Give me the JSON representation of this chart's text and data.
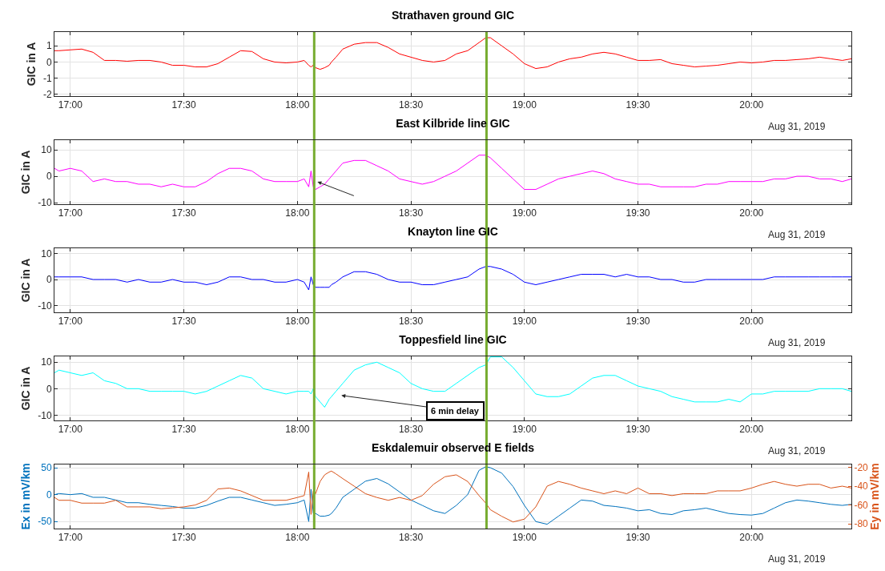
{
  "chart_data": [
    {
      "type": "line",
      "title": "Strathaven ground GIC",
      "ylabel": "GIC in A",
      "xlim": [
        16.93,
        20.44
      ],
      "ylim": [
        -2.1,
        1.85
      ],
      "yticks": [
        -2,
        -1,
        0,
        1
      ],
      "xticks": [
        {
          "value": 17,
          "label": "17:00"
        },
        {
          "value": 17.5,
          "label": "17:30"
        },
        {
          "value": 18,
          "label": "18:00"
        },
        {
          "value": 18.5,
          "label": "18:30"
        },
        {
          "value": 19,
          "label": "19:00"
        },
        {
          "value": 19.5,
          "label": "19:30"
        },
        {
          "value": 20,
          "label": "20:00"
        }
      ],
      "grid": true,
      "x": [
        16.93,
        16.95,
        17.0,
        17.05,
        17.1,
        17.15,
        17.2,
        17.25,
        17.3,
        17.35,
        17.4,
        17.45,
        17.5,
        17.55,
        17.6,
        17.65,
        17.7,
        17.75,
        17.8,
        17.85,
        17.9,
        17.95,
        18.0,
        18.03,
        18.05,
        18.06,
        18.07,
        18.08,
        18.1,
        18.12,
        18.14,
        18.15,
        18.17,
        18.2,
        18.25,
        18.3,
        18.35,
        18.4,
        18.45,
        18.5,
        18.55,
        18.6,
        18.65,
        18.7,
        18.75,
        18.8,
        18.83,
        18.85,
        18.9,
        18.95,
        19.0,
        19.05,
        19.1,
        19.15,
        19.2,
        19.25,
        19.3,
        19.35,
        19.4,
        19.45,
        19.5,
        19.55,
        19.6,
        19.65,
        19.7,
        19.75,
        19.8,
        19.85,
        19.9,
        19.95,
        20.0,
        20.05,
        20.1,
        20.15,
        20.2,
        20.25,
        20.3,
        20.35,
        20.4,
        20.44
      ],
      "series": [
        {
          "color": "#ff0000",
          "values": [
            0.7,
            0.7,
            0.75,
            0.8,
            0.6,
            0.1,
            0.1,
            0.05,
            0.1,
            0.1,
            0.0,
            -0.2,
            -0.2,
            -0.3,
            -0.3,
            -0.1,
            0.3,
            0.7,
            0.65,
            0.2,
            0.0,
            -0.05,
            0.0,
            0.1,
            -0.2,
            -0.3,
            -0.2,
            -0.35,
            -0.45,
            -0.35,
            -0.2,
            0.0,
            0.3,
            0.8,
            1.1,
            1.2,
            1.2,
            0.9,
            0.5,
            0.3,
            0.1,
            0.0,
            0.1,
            0.5,
            0.7,
            1.2,
            1.5,
            1.5,
            1.0,
            0.5,
            -0.1,
            -0.4,
            -0.3,
            0.0,
            0.2,
            0.3,
            0.5,
            0.6,
            0.5,
            0.3,
            0.1,
            0.1,
            0.15,
            -0.1,
            -0.2,
            -0.3,
            -0.25,
            -0.2,
            -0.1,
            0.0,
            -0.05,
            0.0,
            0.1,
            0.1,
            0.15,
            0.2,
            0.3,
            0.2,
            0.1,
            0.2
          ]
        }
      ],
      "ref_lines": [
        {
          "axis": "x",
          "value": 18.074,
          "color": "#77ac30"
        },
        {
          "axis": "x",
          "value": 18.833,
          "color": "#77ac30"
        }
      ],
      "annotations": [
        "Aug 31, 2019"
      ]
    },
    {
      "type": "line",
      "title": "East Kilbride line GIC",
      "ylabel": "GIC in A",
      "xlim": [
        16.93,
        20.44
      ],
      "ylim": [
        -10.6,
        13.7
      ],
      "yticks": [
        -10,
        0,
        10
      ],
      "xticks": [
        {
          "value": 17,
          "label": "17:00"
        },
        {
          "value": 17.5,
          "label": "17:30"
        },
        {
          "value": 18,
          "label": "18:00"
        },
        {
          "value": 18.5,
          "label": "18:30"
        },
        {
          "value": 19,
          "label": "19:00"
        },
        {
          "value": 19.5,
          "label": "19:30"
        },
        {
          "value": 20,
          "label": "20:00"
        }
      ],
      "grid": true,
      "x": [
        16.93,
        16.95,
        17.0,
        17.05,
        17.1,
        17.15,
        17.2,
        17.25,
        17.3,
        17.35,
        17.4,
        17.45,
        17.5,
        17.55,
        17.6,
        17.65,
        17.7,
        17.75,
        17.8,
        17.85,
        17.9,
        17.95,
        18.0,
        18.03,
        18.05,
        18.06,
        18.07,
        18.08,
        18.1,
        18.12,
        18.14,
        18.15,
        18.17,
        18.2,
        18.25,
        18.3,
        18.35,
        18.4,
        18.45,
        18.5,
        18.55,
        18.6,
        18.65,
        18.7,
        18.75,
        18.8,
        18.83,
        18.85,
        18.9,
        18.95,
        19.0,
        19.05,
        19.1,
        19.15,
        19.2,
        19.25,
        19.3,
        19.35,
        19.4,
        19.45,
        19.5,
        19.55,
        19.6,
        19.65,
        19.7,
        19.75,
        19.8,
        19.85,
        19.9,
        19.95,
        20.0,
        20.05,
        20.1,
        20.15,
        20.2,
        20.25,
        20.3,
        20.35,
        20.4,
        20.44
      ],
      "series": [
        {
          "color": "#ff00ff",
          "values": [
            3,
            2,
            3,
            2,
            -2,
            -1,
            -2,
            -2,
            -3,
            -3,
            -4,
            -3,
            -4,
            -4,
            -2,
            1,
            3,
            3,
            2,
            -1,
            -2,
            -2,
            -2,
            -1,
            -4,
            2,
            -4,
            -5,
            -4,
            -3,
            -1,
            0,
            2,
            5,
            6,
            6,
            4,
            2,
            -1,
            -2,
            -3,
            -2,
            0,
            2,
            5,
            8,
            8,
            7,
            3,
            -1,
            -5,
            -5,
            -3,
            -1,
            0,
            1,
            2,
            1,
            -1,
            -2,
            -3,
            -3,
            -4,
            -4,
            -4,
            -4,
            -3,
            -3,
            -2,
            -2,
            -2,
            -2,
            -1,
            -1,
            0,
            0,
            -1,
            -1,
            -2,
            -1
          ]
        }
      ],
      "ref_lines": [
        {
          "axis": "x",
          "value": 18.074,
          "color": "#77ac30"
        },
        {
          "axis": "x",
          "value": 18.833,
          "color": "#77ac30"
        }
      ],
      "annotations": [
        "Aug 31, 2019"
      ]
    },
    {
      "type": "line",
      "title": "Knayton line GIC",
      "ylabel": "GIC in A",
      "xlim": [
        16.93,
        20.44
      ],
      "ylim": [
        -12.6,
        12
      ],
      "yticks": [
        -10,
        0,
        10
      ],
      "xticks": [
        {
          "value": 17,
          "label": "17:00"
        },
        {
          "value": 17.5,
          "label": "17:30"
        },
        {
          "value": 18,
          "label": "18:00"
        },
        {
          "value": 18.5,
          "label": "18:30"
        },
        {
          "value": 19,
          "label": "19:00"
        },
        {
          "value": 19.5,
          "label": "19:30"
        },
        {
          "value": 20,
          "label": "20:00"
        }
      ],
      "grid": true,
      "x": [
        16.93,
        16.95,
        17.0,
        17.05,
        17.1,
        17.15,
        17.2,
        17.25,
        17.3,
        17.35,
        17.4,
        17.45,
        17.5,
        17.55,
        17.6,
        17.65,
        17.7,
        17.75,
        17.8,
        17.85,
        17.9,
        17.95,
        18.0,
        18.03,
        18.05,
        18.06,
        18.07,
        18.08,
        18.1,
        18.12,
        18.14,
        18.15,
        18.17,
        18.2,
        18.25,
        18.3,
        18.35,
        18.4,
        18.45,
        18.5,
        18.55,
        18.6,
        18.65,
        18.7,
        18.75,
        18.8,
        18.83,
        18.85,
        18.9,
        18.95,
        19.0,
        19.05,
        19.1,
        19.15,
        19.2,
        19.25,
        19.3,
        19.35,
        19.4,
        19.45,
        19.5,
        19.55,
        19.6,
        19.65,
        19.7,
        19.75,
        19.8,
        19.85,
        19.9,
        19.95,
        20.0,
        20.05,
        20.1,
        20.15,
        20.2,
        20.25,
        20.3,
        20.35,
        20.4,
        20.44
      ],
      "series": [
        {
          "color": "#0000ff",
          "values": [
            1,
            1,
            1,
            1,
            0,
            0,
            0,
            -1,
            0,
            -1,
            -1,
            0,
            -1,
            -1,
            -2,
            -1,
            1,
            1,
            0,
            0,
            -1,
            -1,
            0,
            -1,
            -4,
            1,
            -2,
            -3,
            -3,
            -3,
            -3,
            -2,
            -1,
            1,
            3,
            3,
            2,
            0,
            -1,
            -1,
            -2,
            -2,
            -1,
            0,
            1,
            4,
            5,
            5,
            4,
            2,
            -1,
            -2,
            -1,
            0,
            1,
            2,
            2,
            2,
            1,
            2,
            1,
            1,
            0,
            0,
            -1,
            -1,
            0,
            0,
            0,
            0,
            0,
            0,
            1,
            1,
            1,
            1,
            1,
            1,
            1,
            1
          ]
        }
      ],
      "ref_lines": [
        {
          "axis": "x",
          "value": 18.074,
          "color": "#77ac30"
        },
        {
          "axis": "x",
          "value": 18.833,
          "color": "#77ac30"
        }
      ],
      "annotations": [
        "Aug 31, 2019"
      ]
    },
    {
      "type": "line",
      "title": "Toppesfield line GIC",
      "ylabel": "GIC in A",
      "xlim": [
        16.93,
        20.44
      ],
      "ylim": [
        -12,
        12.2
      ],
      "yticks": [
        -10,
        0,
        10
      ],
      "xticks": [
        {
          "value": 17,
          "label": "17:00"
        },
        {
          "value": 17.5,
          "label": "17:30"
        },
        {
          "value": 18,
          "label": "18:00"
        },
        {
          "value": 18.5,
          "label": "18:30"
        },
        {
          "value": 19,
          "label": "19:00"
        },
        {
          "value": 19.5,
          "label": "19:30"
        },
        {
          "value": 20,
          "label": "20:00"
        }
      ],
      "grid": true,
      "x": [
        16.93,
        16.95,
        17.0,
        17.05,
        17.1,
        17.15,
        17.2,
        17.25,
        17.3,
        17.35,
        17.4,
        17.45,
        17.5,
        17.55,
        17.6,
        17.65,
        17.7,
        17.75,
        17.8,
        17.85,
        17.9,
        17.95,
        18.0,
        18.03,
        18.05,
        18.06,
        18.07,
        18.08,
        18.1,
        18.12,
        18.14,
        18.15,
        18.17,
        18.2,
        18.25,
        18.3,
        18.35,
        18.4,
        18.45,
        18.5,
        18.55,
        18.6,
        18.65,
        18.7,
        18.75,
        18.8,
        18.83,
        18.85,
        18.9,
        18.95,
        19.0,
        19.05,
        19.1,
        19.15,
        19.2,
        19.25,
        19.3,
        19.35,
        19.4,
        19.45,
        19.5,
        19.55,
        19.6,
        19.65,
        19.7,
        19.75,
        19.8,
        19.85,
        19.9,
        19.95,
        20.0,
        20.05,
        20.1,
        20.15,
        20.2,
        20.25,
        20.3,
        20.35,
        20.4,
        20.44
      ],
      "series": [
        {
          "color": "#00ffff",
          "values": [
            6,
            7,
            6,
            5,
            6,
            3,
            2,
            0,
            0,
            -1,
            -1,
            -1,
            -1,
            -2,
            -1,
            1,
            3,
            5,
            4,
            0,
            -1,
            -2,
            -1,
            -1,
            -1,
            -2,
            0,
            -3,
            -5,
            -7,
            -4,
            -3,
            -1,
            2,
            7,
            9,
            10,
            8,
            6,
            2,
            0,
            -1,
            -1,
            2,
            5,
            8,
            9,
            12,
            12,
            8,
            3,
            -2,
            -3,
            -3,
            -2,
            1,
            4,
            5,
            5,
            3,
            1,
            0,
            -1,
            -3,
            -4,
            -5,
            -5,
            -5,
            -4,
            -5,
            -2,
            -2,
            -1,
            -1,
            -1,
            -1,
            0,
            0,
            0,
            -1
          ]
        }
      ],
      "ref_lines": [
        {
          "axis": "x",
          "value": 18.074,
          "color": "#77ac30"
        },
        {
          "axis": "x",
          "value": 18.833,
          "color": "#77ac30"
        }
      ],
      "annotations": [
        "Aug 31, 2019",
        "6 min delay"
      ]
    },
    {
      "type": "line",
      "title": "Eskdalemuir observed E fields",
      "ylabel": "Ex in mV/km",
      "y2label": "Ey in mV/km",
      "xlim": [
        16.93,
        20.44
      ],
      "ylim": [
        -63,
        56
      ],
      "yticks": [
        -50,
        0,
        50
      ],
      "y2lim": [
        -85,
        -17
      ],
      "y2ticks": [
        -80,
        -60,
        -40,
        -20
      ],
      "xticks": [
        {
          "value": 17,
          "label": "17:00"
        },
        {
          "value": 17.5,
          "label": "17:30"
        },
        {
          "value": 18,
          "label": "18:00"
        },
        {
          "value": 18.5,
          "label": "18:30"
        },
        {
          "value": 19,
          "label": "19:00"
        },
        {
          "value": 19.5,
          "label": "19:30"
        },
        {
          "value": 20,
          "label": "20:00"
        }
      ],
      "grid": true,
      "x": [
        16.93,
        16.95,
        17.0,
        17.05,
        17.1,
        17.15,
        17.2,
        17.25,
        17.3,
        17.35,
        17.4,
        17.45,
        17.5,
        17.55,
        17.6,
        17.65,
        17.7,
        17.75,
        17.8,
        17.85,
        17.9,
        17.95,
        18.0,
        18.03,
        18.05,
        18.06,
        18.07,
        18.08,
        18.1,
        18.12,
        18.14,
        18.15,
        18.17,
        18.2,
        18.25,
        18.3,
        18.35,
        18.4,
        18.45,
        18.5,
        18.55,
        18.6,
        18.65,
        18.7,
        18.75,
        18.8,
        18.83,
        18.85,
        18.9,
        18.95,
        19.0,
        19.05,
        19.1,
        19.15,
        19.2,
        19.25,
        19.3,
        19.35,
        19.4,
        19.45,
        19.5,
        19.55,
        19.6,
        19.65,
        19.7,
        19.75,
        19.8,
        19.85,
        19.9,
        19.95,
        20.0,
        20.05,
        20.1,
        20.15,
        20.2,
        20.25,
        20.3,
        20.35,
        20.4,
        20.44
      ],
      "series": [
        {
          "color": "#0072bd",
          "values": [
            0,
            2,
            0,
            2,
            -5,
            -5,
            -10,
            -15,
            -15,
            -18,
            -20,
            -22,
            -25,
            -25,
            -20,
            -12,
            -5,
            -5,
            -10,
            -15,
            -20,
            -18,
            -15,
            -10,
            -50,
            10,
            -35,
            -35,
            -40,
            -40,
            -38,
            -35,
            -25,
            -5,
            10,
            25,
            30,
            20,
            5,
            -10,
            -20,
            -30,
            -35,
            -20,
            0,
            45,
            52,
            50,
            40,
            15,
            -20,
            -50,
            -55,
            -40,
            -25,
            -10,
            -12,
            -20,
            -22,
            -25,
            -30,
            -28,
            -35,
            -37,
            -30,
            -28,
            -25,
            -30,
            -35,
            -37,
            -38,
            -35,
            -25,
            -15,
            -10,
            -12,
            -15,
            -18,
            -20,
            -18
          ]
        },
        {
          "color": "#d95319",
          "axis": "y2",
          "values": [
            -52,
            -55,
            -55,
            -58,
            -58,
            -58,
            -55,
            -62,
            -62,
            -62,
            -64,
            -63,
            -62,
            -60,
            -55,
            -43,
            -42,
            -45,
            -50,
            -55,
            -55,
            -55,
            -52,
            -50,
            -25,
            -70,
            -45,
            -48,
            -35,
            -28,
            -25,
            -24,
            -27,
            -32,
            -40,
            -48,
            -52,
            -55,
            -52,
            -55,
            -50,
            -38,
            -30,
            -28,
            -35,
            -50,
            -58,
            -65,
            -72,
            -78,
            -75,
            -62,
            -40,
            -35,
            -38,
            -42,
            -45,
            -48,
            -45,
            -48,
            -42,
            -48,
            -48,
            -50,
            -48,
            -48,
            -48,
            -45,
            -45,
            -45,
            -42,
            -38,
            -35,
            -38,
            -40,
            -38,
            -38,
            -42,
            -40,
            -42
          ]
        }
      ],
      "ref_lines": [
        {
          "axis": "x",
          "value": 18.074,
          "color": "#77ac30"
        },
        {
          "axis": "x",
          "value": 18.833,
          "color": "#77ac30"
        }
      ],
      "annotations": [
        "Aug 31, 2019"
      ]
    }
  ]
}
